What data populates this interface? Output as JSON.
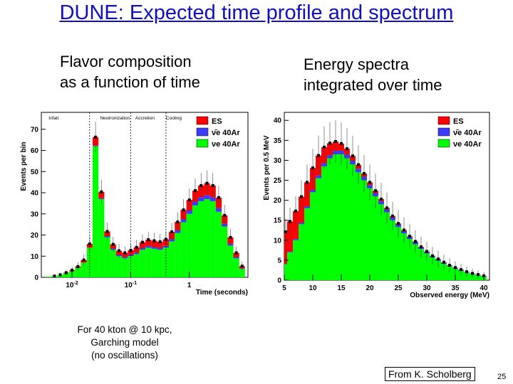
{
  "slide": {
    "title": "DUNE: Expected time profile and spectrum",
    "left_subtitle": [
      "Flavor composition",
      "as a function of time"
    ],
    "right_subtitle": [
      "Energy spectra",
      "integrated over time"
    ],
    "note": [
      "For 40 kton @ 10 kpc,",
      "Garching model",
      "(no oscillations)"
    ],
    "credit": "From K. Scholberg",
    "page_number": "25"
  },
  "colors": {
    "ES": "#ff0000",
    "nuebar": "#3c3cff",
    "nue": "#00ff00",
    "title": "#1010c0"
  },
  "chart_data": [
    {
      "type": "bar",
      "stacked": true,
      "x_scale": "log",
      "xlabel": "Time (seconds)",
      "ylabel": "Events per bin",
      "xlim": [
        0.003,
        10
      ],
      "ylim": [
        0,
        78
      ],
      "x_ticks": [
        {
          "v": 0.01,
          "label": "10",
          "exp": "-2"
        },
        {
          "v": 0.1,
          "label": "10",
          "exp": "-1"
        },
        {
          "v": 1,
          "label": "1",
          "exp": ""
        }
      ],
      "y_ticks": [
        0,
        10,
        20,
        30,
        40,
        50,
        60,
        70
      ],
      "phases": [
        {
          "label": "Infall",
          "x": 0.004
        },
        {
          "label": "Neutronization",
          "x": 0.03
        },
        {
          "label": "Accretion",
          "x": 0.12
        },
        {
          "label": "Cooling",
          "x": 0.4
        }
      ],
      "phase_boundaries": [
        0.02,
        0.1,
        0.4
      ],
      "legend": [
        "ES",
        "ν̄e 40Ar",
        "νe 40Ar"
      ],
      "legend_position": "top-right",
      "series": [
        {
          "name": "νe 40Ar",
          "color": "#00ff00",
          "points": [
            [
              0.004,
              0.3
            ],
            [
              0.005,
              0.6
            ],
            [
              0.0063,
              1.2
            ],
            [
              0.0079,
              2.0
            ],
            [
              0.01,
              3
            ],
            [
              0.0126,
              4.5
            ],
            [
              0.0158,
              7
            ],
            [
              0.02,
              14
            ],
            [
              0.0251,
              62
            ],
            [
              0.0316,
              37
            ],
            [
              0.0398,
              19
            ],
            [
              0.0501,
              13
            ],
            [
              0.0631,
              10
            ],
            [
              0.0794,
              9
            ],
            [
              0.1,
              10
            ],
            [
              0.126,
              11
            ],
            [
              0.158,
              13
            ],
            [
              0.2,
              14
            ],
            [
              0.251,
              13.5
            ],
            [
              0.316,
              13
            ],
            [
              0.398,
              14
            ],
            [
              0.501,
              17
            ],
            [
              0.631,
              21
            ],
            [
              0.794,
              26
            ],
            [
              1,
              30
            ],
            [
              1.26,
              34
            ],
            [
              1.58,
              36
            ],
            [
              2,
              37
            ],
            [
              2.51,
              36
            ],
            [
              3.16,
              31
            ],
            [
              3.98,
              24
            ],
            [
              5.01,
              15
            ],
            [
              6.31,
              9
            ],
            [
              7.94,
              4
            ]
          ]
        },
        {
          "name": "ν̄e 40Ar",
          "color": "#3c3cff",
          "points": [
            [
              0.004,
              0
            ],
            [
              0.005,
              0
            ],
            [
              0.0063,
              0
            ],
            [
              0.0079,
              0
            ],
            [
              0.01,
              0
            ],
            [
              0.0126,
              0
            ],
            [
              0.0158,
              0
            ],
            [
              0.02,
              0
            ],
            [
              0.0251,
              0.3
            ],
            [
              0.0316,
              0.4
            ],
            [
              0.0398,
              0.5
            ],
            [
              0.0501,
              0.6
            ],
            [
              0.0631,
              0.6
            ],
            [
              0.0794,
              0.6
            ],
            [
              0.1,
              0.6
            ],
            [
              0.126,
              0.7
            ],
            [
              0.158,
              0.8
            ],
            [
              0.2,
              0.8
            ],
            [
              0.251,
              0.8
            ],
            [
              0.316,
              0.8
            ],
            [
              0.398,
              0.9
            ],
            [
              0.501,
              1
            ],
            [
              0.631,
              1.2
            ],
            [
              0.794,
              1.4
            ],
            [
              1,
              1.6
            ],
            [
              1.26,
              1.8
            ],
            [
              1.58,
              1.9
            ],
            [
              2,
              1.9
            ],
            [
              2.51,
              1.9
            ],
            [
              3.16,
              1.7
            ],
            [
              3.98,
              1.3
            ],
            [
              5.01,
              0.9
            ],
            [
              6.31,
              0.6
            ],
            [
              7.94,
              0.3
            ]
          ]
        },
        {
          "name": "ES",
          "color": "#ff0000",
          "points": [
            [
              0.004,
              0
            ],
            [
              0.005,
              0
            ],
            [
              0.0063,
              0
            ],
            [
              0.0079,
              0.2
            ],
            [
              0.01,
              0.4
            ],
            [
              0.0126,
              0.6
            ],
            [
              0.0158,
              1.2
            ],
            [
              0.02,
              1.8
            ],
            [
              0.0251,
              4
            ],
            [
              0.0316,
              3
            ],
            [
              0.0398,
              2.2
            ],
            [
              0.0501,
              2
            ],
            [
              0.0631,
              2
            ],
            [
              0.0794,
              2
            ],
            [
              0.1,
              2.2
            ],
            [
              0.126,
              2.5
            ],
            [
              0.158,
              2.8
            ],
            [
              0.2,
              3
            ],
            [
              0.251,
              3
            ],
            [
              0.316,
              3
            ],
            [
              0.398,
              3.1
            ],
            [
              0.501,
              3.5
            ],
            [
              0.631,
              4
            ],
            [
              0.794,
              4.5
            ],
            [
              1,
              5
            ],
            [
              1.26,
              5.2
            ],
            [
              1.58,
              5.5
            ],
            [
              2,
              5.6
            ],
            [
              2.51,
              5.5
            ],
            [
              3.16,
              5
            ],
            [
              3.98,
              4
            ],
            [
              5.01,
              3
            ],
            [
              6.31,
              2
            ],
            [
              7.94,
              1
            ]
          ]
        }
      ]
    },
    {
      "type": "bar",
      "stacked": true,
      "xlabel": "Observed energy (MeV)",
      "ylabel": "Events per 0.5 MeV",
      "xlim": [
        5,
        41
      ],
      "ylim": [
        0,
        42
      ],
      "x_ticks": [
        5,
        10,
        15,
        20,
        25,
        30,
        35,
        40
      ],
      "y_ticks": [
        0,
        5,
        10,
        15,
        20,
        25,
        30,
        35,
        40
      ],
      "legend": [
        "ES",
        "ν̄e 40Ar",
        "νe 40Ar"
      ],
      "legend_position": "top-right",
      "series": [
        {
          "name": "νe 40Ar",
          "color": "#00ff00",
          "points": [
            [
              5,
              4
            ],
            [
              6,
              7
            ],
            [
              7,
              10
            ],
            [
              8,
              14
            ],
            [
              9,
              18
            ],
            [
              10,
              22
            ],
            [
              11,
              25.5
            ],
            [
              12,
              28.5
            ],
            [
              13,
              30.5
            ],
            [
              14,
              31.5
            ],
            [
              15,
              31.5
            ],
            [
              16,
              30.5
            ],
            [
              17,
              29
            ],
            [
              18,
              27
            ],
            [
              19,
              25
            ],
            [
              20,
              23
            ],
            [
              21,
              21
            ],
            [
              22,
              19
            ],
            [
              23,
              17
            ],
            [
              24,
              15
            ],
            [
              25,
              13.3
            ],
            [
              26,
              11.7
            ],
            [
              27,
              10.3
            ],
            [
              28,
              9
            ],
            [
              29,
              7.8
            ],
            [
              30,
              6.7
            ],
            [
              31,
              5.7
            ],
            [
              32,
              4.9
            ],
            [
              33,
              4.1
            ],
            [
              34,
              3.5
            ],
            [
              35,
              2.9
            ],
            [
              36,
              2.4
            ],
            [
              37,
              2
            ],
            [
              38,
              1.6
            ],
            [
              39,
              1.3
            ],
            [
              40,
              1
            ]
          ]
        },
        {
          "name": "ν̄e 40Ar",
          "color": "#3c3cff",
          "points": [
            [
              5,
              0.1
            ],
            [
              6,
              0.2
            ],
            [
              7,
              0.3
            ],
            [
              8,
              0.4
            ],
            [
              9,
              0.5
            ],
            [
              10,
              0.6
            ],
            [
              11,
              0.7
            ],
            [
              12,
              0.8
            ],
            [
              13,
              0.8
            ],
            [
              14,
              0.9
            ],
            [
              15,
              0.9
            ],
            [
              16,
              0.9
            ],
            [
              17,
              0.9
            ],
            [
              18,
              0.9
            ],
            [
              19,
              0.9
            ],
            [
              20,
              0.8
            ],
            [
              21,
              0.8
            ],
            [
              22,
              0.8
            ],
            [
              23,
              0.7
            ],
            [
              24,
              0.7
            ],
            [
              25,
              0.6
            ],
            [
              26,
              0.6
            ],
            [
              27,
              0.5
            ],
            [
              28,
              0.5
            ],
            [
              29,
              0.4
            ],
            [
              30,
              0.4
            ],
            [
              31,
              0.3
            ],
            [
              32,
              0.3
            ],
            [
              33,
              0.3
            ],
            [
              34,
              0.2
            ],
            [
              35,
              0.2
            ],
            [
              36,
              0.2
            ],
            [
              37,
              0.1
            ],
            [
              38,
              0.1
            ],
            [
              39,
              0.1
            ],
            [
              40,
              0.1
            ]
          ]
        },
        {
          "name": "ES",
          "color": "#ff0000",
          "points": [
            [
              5,
              8
            ],
            [
              6,
              7.5
            ],
            [
              7,
              7
            ],
            [
              8,
              6.5
            ],
            [
              9,
              6
            ],
            [
              10,
              5.5
            ],
            [
              11,
              5
            ],
            [
              12,
              4
            ],
            [
              13,
              3
            ],
            [
              14,
              2.3
            ],
            [
              15,
              1.8
            ],
            [
              16,
              1.5
            ],
            [
              17,
              1.2
            ],
            [
              18,
              1
            ],
            [
              19,
              0.8
            ],
            [
              20,
              0.7
            ],
            [
              21,
              0.6
            ],
            [
              22,
              0.5
            ],
            [
              23,
              0.4
            ],
            [
              24,
              0.35
            ],
            [
              25,
              0.3
            ],
            [
              26,
              0.25
            ],
            [
              27,
              0.2
            ],
            [
              28,
              0.2
            ],
            [
              29,
              0.15
            ],
            [
              30,
              0.1
            ],
            [
              31,
              0.1
            ],
            [
              32,
              0.1
            ],
            [
              33,
              0.1
            ],
            [
              34,
              0.05
            ],
            [
              35,
              0.05
            ],
            [
              36,
              0.05
            ],
            [
              37,
              0
            ],
            [
              38,
              0
            ],
            [
              39,
              0
            ],
            [
              40,
              0
            ]
          ]
        }
      ]
    }
  ]
}
